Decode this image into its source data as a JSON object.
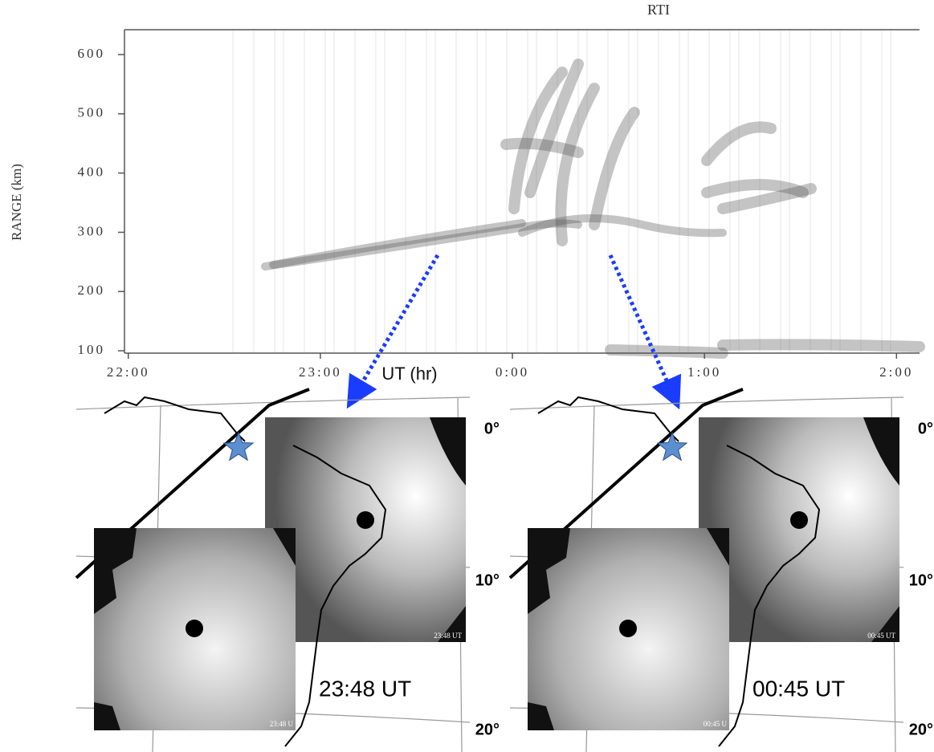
{
  "figure": {
    "rti": {
      "title": "RTI",
      "y_label": "RANGE (km)",
      "x_label": "UT (hr)",
      "ylim": [
        96,
        642
      ],
      "yticks": [
        100,
        200,
        300,
        400,
        500,
        600
      ],
      "xlim": [
        21.98,
        26.12
      ],
      "xticks": [
        {
          "value": 22,
          "label": "22:00"
        },
        {
          "value": 23,
          "label": "23:00"
        },
        {
          "value": 24,
          "label": "0:00"
        },
        {
          "value": 25,
          "label": "1:00"
        },
        {
          "value": 26,
          "label": "2:00"
        }
      ]
    },
    "panels": [
      {
        "time_label": "23:48 UT",
        "upper_stamp": "23:48 UT",
        "lower_stamp": "23:48 U",
        "lat_labels": [
          "0°",
          "10°",
          "20°"
        ]
      },
      {
        "time_label": "00:45 UT",
        "upper_stamp": "00:45 UT",
        "lower_stamp": "00:45 U",
        "lat_labels": [
          "0°",
          "10°",
          "20°"
        ]
      }
    ]
  }
}
